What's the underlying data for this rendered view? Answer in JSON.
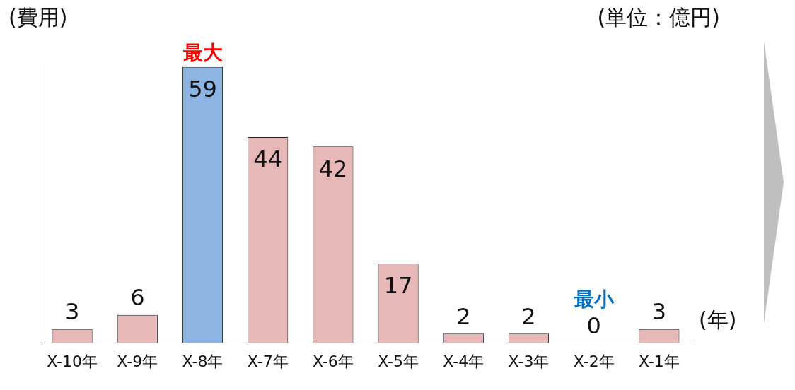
{
  "chart_data": {
    "type": "bar",
    "ylabel": "(費用)",
    "xlabel": "(年)",
    "categories": [
      "X-10年",
      "X-9年",
      "X-8年",
      "X-7年",
      "X-6年",
      "X-5年",
      "X-4年",
      "X-3年",
      "X-2年",
      "X-1年"
    ],
    "values": [
      3,
      6,
      59,
      44,
      42,
      17,
      2,
      2,
      0,
      3
    ],
    "colors": [
      "#e6b9b8",
      "#e6b9b8",
      "#8eb4e3",
      "#e6b9b8",
      "#e6b9b8",
      "#e6b9b8",
      "#e6b9b8",
      "#e6b9b8",
      "#e6b9b8",
      "#e6b9b8"
    ],
    "data_labels": true,
    "grid": false,
    "legend": false,
    "annotations": [
      {
        "text": "最大",
        "x": "X-8年",
        "y": 59
      },
      {
        "text": "最小",
        "x": "X-2年",
        "y": 0
      },
      "(単位：億円)"
    ]
  }
}
